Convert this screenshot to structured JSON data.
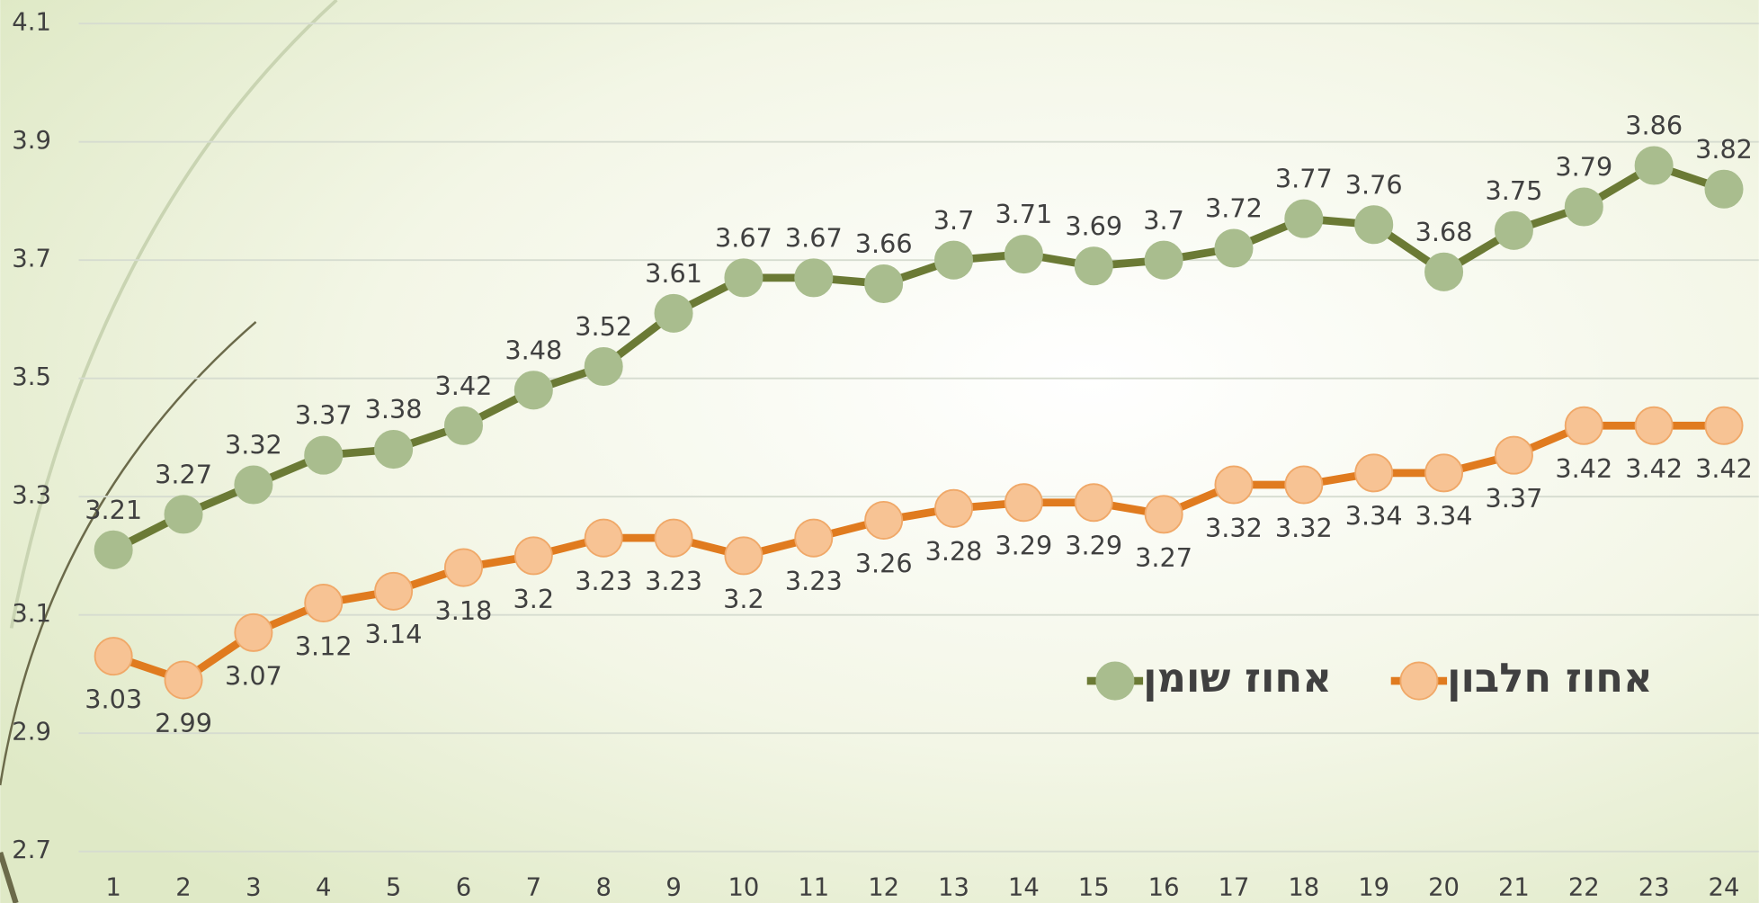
{
  "chart_data": {
    "type": "line",
    "categories": [
      1,
      2,
      3,
      4,
      5,
      6,
      7,
      8,
      9,
      10,
      11,
      12,
      13,
      14,
      15,
      16,
      17,
      18,
      19,
      20,
      21,
      22,
      23,
      24
    ],
    "series": [
      {
        "name": "אחוז חלבון",
        "color": "#e07b1f",
        "marker_color": "#f7c394",
        "values": [
          3.03,
          2.99,
          3.07,
          3.12,
          3.14,
          3.18,
          3.2,
          3.23,
          3.23,
          3.2,
          3.23,
          3.26,
          3.28,
          3.29,
          3.29,
          3.27,
          3.32,
          3.32,
          3.34,
          3.34,
          3.37,
          3.42,
          3.42,
          3.42
        ]
      },
      {
        "name": "אחוז שומן",
        "color": "#6b7a35",
        "marker_color": "#a9bd8e",
        "values": [
          3.21,
          3.27,
          3.32,
          3.37,
          3.38,
          3.42,
          3.48,
          3.52,
          3.61,
          3.67,
          3.67,
          3.66,
          3.7,
          3.71,
          3.69,
          3.7,
          3.72,
          3.77,
          3.76,
          3.68,
          3.75,
          3.79,
          3.86,
          3.82
        ]
      }
    ],
    "ylim": [
      2.7,
      4.1
    ],
    "yticks": [
      2.7,
      2.9,
      3.1,
      3.3,
      3.5,
      3.7,
      3.9,
      4.1
    ],
    "grid": true
  }
}
